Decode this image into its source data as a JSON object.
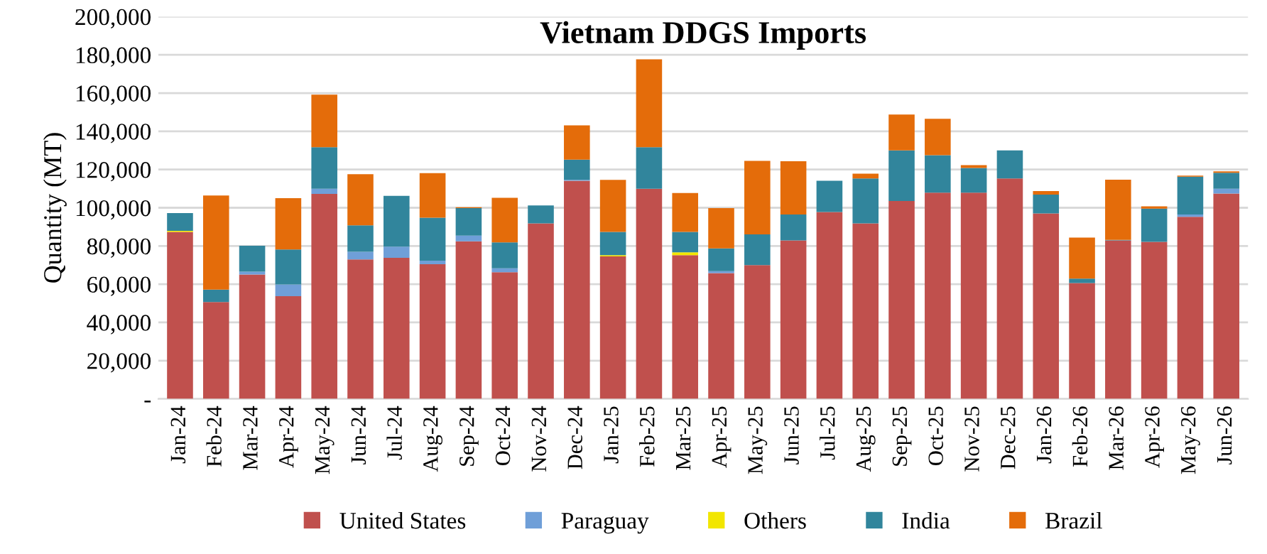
{
  "chart_data": {
    "type": "bar",
    "title": "Vietnam DDGS Imports",
    "ylabel": "Quantity (MT)",
    "stacked": true,
    "categories": [
      "Jan-24",
      "Feb-24",
      "Mar-24",
      "Apr-24",
      "May-24",
      "Jun-24",
      "Jul-24",
      "Aug-24",
      "Sep-24",
      "Oct-24",
      "Nov-24",
      "Dec-24",
      "Jan-25",
      "Feb-25",
      "Mar-25",
      "Apr-25",
      "May-25",
      "Jun-25",
      "Jul-25",
      "Aug-25",
      "Sep-25",
      "Oct-25",
      "Nov-25",
      "Dec-25",
      "Jan-26",
      "Feb-26",
      "Mar-26",
      "Apr-26",
      "May-26",
      "Jun-26"
    ],
    "series": [
      {
        "name": "United States",
        "color": "#c0504d",
        "values": [
          87400,
          50700,
          65100,
          53700,
          107200,
          73000,
          73800,
          70500,
          82400,
          66300,
          91800,
          114100,
          74500,
          109900,
          75200,
          65800,
          70000,
          82900,
          97800,
          91800,
          103500,
          107900,
          107900,
          115300,
          97000,
          60600,
          82900,
          82200,
          95300,
          107400
        ]
      },
      {
        "name": "Paraguay",
        "color": "#6f9fd8",
        "values": [
          0,
          0,
          1500,
          6200,
          2700,
          4000,
          5900,
          1800,
          3000,
          2000,
          0,
          500,
          0,
          0,
          0,
          1000,
          0,
          0,
          0,
          0,
          0,
          0,
          0,
          0,
          0,
          0,
          0,
          0,
          1200,
          2500
        ]
      },
      {
        "name": "Others",
        "color": "#f2e600",
        "values": [
          500,
          0,
          null,
          0,
          0,
          0,
          0,
          0,
          0,
          0,
          0,
          0,
          700,
          0,
          1500,
          0,
          0,
          0,
          0,
          0,
          0,
          0,
          0,
          0,
          0,
          0,
          0,
          0,
          0,
          0
        ]
      },
      {
        "name": "India",
        "color": "#31859c",
        "values": [
          9300,
          6500,
          13500,
          18300,
          21800,
          13800,
          26500,
          22500,
          14400,
          13600,
          9400,
          10600,
          12200,
          21800,
          10700,
          11900,
          16100,
          13600,
          16300,
          23500,
          26500,
          19600,
          12900,
          14700,
          9900,
          2300,
          300,
          17300,
          19800,
          8400
        ]
      },
      {
        "name": "Brazil",
        "color": "#e46c0a",
        "values": [
          0,
          49200,
          0,
          26800,
          27500,
          26800,
          0,
          23300,
          500,
          23300,
          0,
          17900,
          27200,
          46000,
          20300,
          21100,
          38400,
          27800,
          0,
          2500,
          18800,
          19000,
          1500,
          0,
          1800,
          21500,
          31500,
          1200,
          500,
          700
        ]
      }
    ],
    "ylim": [
      0,
      200000
    ],
    "yticks": [
      {
        "value": 0,
        "label": "-"
      },
      {
        "value": 20000,
        "label": "20,000"
      },
      {
        "value": 40000,
        "label": "40,000"
      },
      {
        "value": 60000,
        "label": "60,000"
      },
      {
        "value": 80000,
        "label": "80,000"
      },
      {
        "value": 100000,
        "label": "100,000"
      },
      {
        "value": 120000,
        "label": "120,000"
      },
      {
        "value": 140000,
        "label": "140,000"
      },
      {
        "value": 160000,
        "label": "160,000"
      },
      {
        "value": 180000,
        "label": "180,000"
      },
      {
        "value": 200000,
        "label": "200,000"
      }
    ],
    "grid": "y",
    "legend": "bottom"
  }
}
